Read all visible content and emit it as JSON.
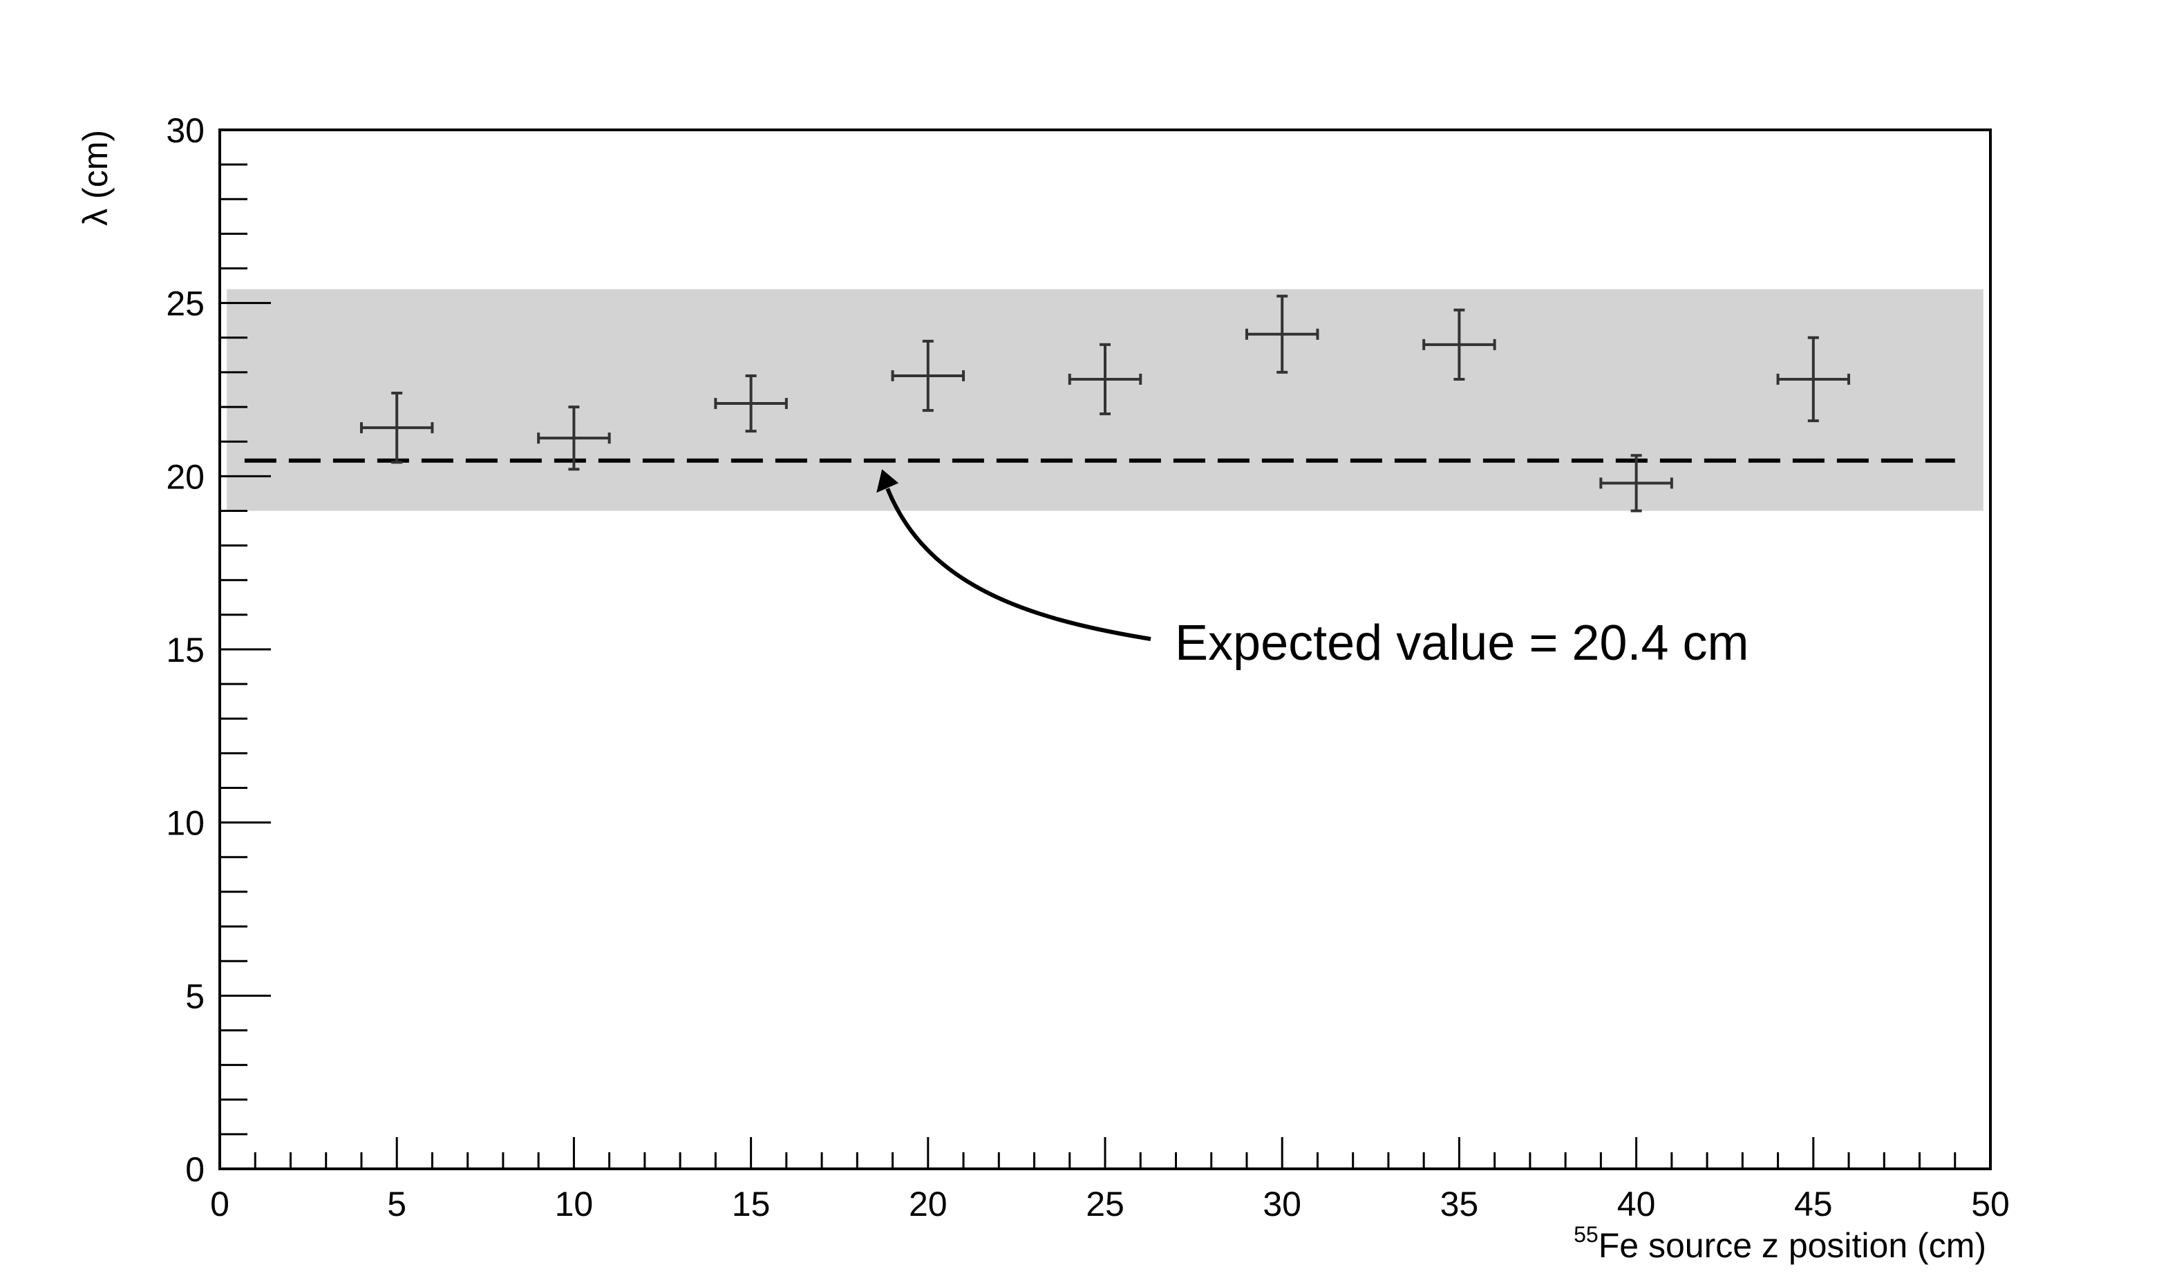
{
  "chart_data": {
    "type": "scatter",
    "title": "",
    "xlabel": {
      "superscript": "55",
      "text": "Fe source z position (cm)"
    },
    "ylabel": "λ (cm)",
    "xlim": [
      0,
      50
    ],
    "ylim": [
      0,
      30
    ],
    "x_major_ticks": [
      0,
      5,
      10,
      15,
      20,
      25,
      30,
      35,
      40,
      45,
      50
    ],
    "y_major_ticks": [
      0,
      5,
      10,
      15,
      20,
      25,
      30
    ],
    "x_minor_step": 1,
    "y_minor_step": 1,
    "grid": false,
    "band": {
      "y_low": 19.0,
      "y_high": 25.4,
      "x_low": 0.2,
      "x_high": 49.8,
      "color": "#d3d3d3"
    },
    "reference_line": {
      "y": 20.45,
      "x_low": 0.7,
      "x_high": 49.0,
      "style": "dashed",
      "color": "#000000"
    },
    "annotation": {
      "text": "Expected value = 20.4 cm",
      "arrow_tip": {
        "x": 18.7,
        "y": 20.2
      }
    },
    "series": [
      {
        "points": [
          {
            "x": 5,
            "y": 21.4,
            "xerr": 1,
            "yerr_low": 1.0,
            "yerr_high": 1.0
          },
          {
            "x": 10,
            "y": 21.1,
            "xerr": 1,
            "yerr_low": 0.9,
            "yerr_high": 0.9
          },
          {
            "x": 15,
            "y": 22.1,
            "xerr": 1,
            "yerr_low": 0.8,
            "yerr_high": 0.8
          },
          {
            "x": 20,
            "y": 22.9,
            "xerr": 1,
            "yerr_low": 1.0,
            "yerr_high": 1.0
          },
          {
            "x": 25,
            "y": 22.8,
            "xerr": 1,
            "yerr_low": 1.0,
            "yerr_high": 1.0
          },
          {
            "x": 30,
            "y": 24.1,
            "xerr": 1,
            "yerr_low": 1.1,
            "yerr_high": 1.1
          },
          {
            "x": 35,
            "y": 23.8,
            "xerr": 1,
            "yerr_low": 1.0,
            "yerr_high": 1.0
          },
          {
            "x": 40,
            "y": 19.8,
            "xerr": 1,
            "yerr_low": 0.8,
            "yerr_high": 0.8
          },
          {
            "x": 45,
            "y": 22.8,
            "xerr": 1,
            "yerr_low": 1.2,
            "yerr_high": 1.2
          }
        ],
        "color": "#333333"
      }
    ]
  }
}
